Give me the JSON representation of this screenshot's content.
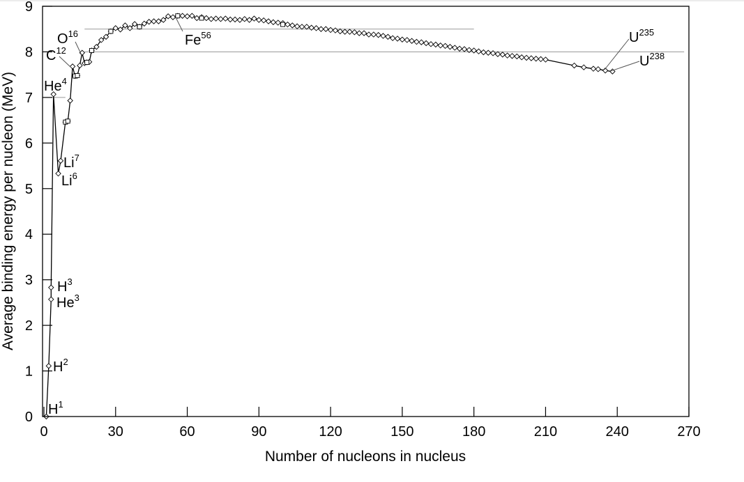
{
  "chart_data": {
    "type": "scatter",
    "title": "",
    "xlabel": "Number of nucleons in nucleus",
    "ylabel": "Average binding energy per nucleon (MeV)",
    "xlim": [
      0,
      270
    ],
    "ylim": [
      0,
      9
    ],
    "x_ticks": [
      0,
      30,
      60,
      90,
      120,
      150,
      180,
      210,
      240,
      270
    ],
    "y_ticks": [
      0,
      1,
      2,
      3,
      4,
      5,
      6,
      7,
      8,
      9
    ],
    "grid": false,
    "legend": "none",
    "reference_lines": [
      {
        "y": 8.5,
        "x_from": 17,
        "x_to": 180,
        "color": "#999999"
      },
      {
        "y": 8.0,
        "x_from": 17,
        "x_to": 268,
        "color": "#999999"
      },
      {
        "y": 7.0,
        "x_from": 3,
        "x_to": 9,
        "color": "#999999"
      }
    ],
    "series": [
      {
        "marker": "diamond",
        "connected": true,
        "x": [
          1,
          2,
          3,
          3,
          4,
          6,
          7,
          9,
          10,
          11,
          12,
          13,
          14,
          15,
          16,
          17,
          18,
          19,
          20,
          22,
          24,
          26,
          28,
          30,
          32,
          34,
          36,
          38,
          40,
          42,
          44,
          46,
          48,
          50,
          52,
          54,
          56,
          58,
          60,
          62,
          64,
          66,
          68,
          70,
          72,
          74,
          76,
          78,
          80,
          82,
          84,
          86,
          88,
          90,
          92,
          94,
          96,
          98,
          100,
          102,
          104,
          106,
          108,
          110,
          112,
          114,
          116,
          118,
          120,
          122,
          124,
          126,
          128,
          130,
          132,
          134,
          136,
          138,
          140,
          142,
          144,
          146,
          148,
          150,
          152,
          154,
          156,
          158,
          160,
          162,
          164,
          166,
          168,
          170,
          172,
          174,
          176,
          178,
          180,
          182,
          184,
          186,
          188,
          190,
          192,
          194,
          196,
          198,
          200,
          202,
          204,
          206,
          208,
          210,
          222,
          226,
          230,
          232,
          235,
          238
        ],
        "y": [
          0.0,
          1.11,
          2.57,
          2.83,
          7.07,
          5.33,
          5.61,
          6.46,
          6.48,
          6.93,
          7.68,
          7.47,
          7.48,
          7.7,
          7.98,
          7.75,
          7.77,
          7.78,
          8.03,
          8.11,
          8.26,
          8.33,
          8.45,
          8.52,
          8.49,
          8.58,
          8.52,
          8.61,
          8.55,
          8.62,
          8.66,
          8.67,
          8.67,
          8.7,
          8.78,
          8.76,
          8.79,
          8.79,
          8.78,
          8.79,
          8.74,
          8.76,
          8.74,
          8.72,
          8.73,
          8.72,
          8.73,
          8.71,
          8.71,
          8.7,
          8.72,
          8.7,
          8.73,
          8.7,
          8.69,
          8.67,
          8.65,
          8.64,
          8.63,
          8.6,
          8.58,
          8.56,
          8.55,
          8.55,
          8.53,
          8.52,
          8.5,
          8.5,
          8.48,
          8.47,
          8.45,
          8.44,
          8.44,
          8.43,
          8.41,
          8.41,
          8.38,
          8.38,
          8.37,
          8.35,
          8.33,
          8.3,
          8.29,
          8.27,
          8.26,
          8.24,
          8.22,
          8.21,
          8.19,
          8.17,
          8.16,
          8.14,
          8.13,
          8.11,
          8.09,
          8.07,
          8.06,
          8.04,
          8.03,
          8.01,
          7.99,
          7.98,
          7.97,
          7.95,
          7.94,
          7.92,
          7.91,
          7.9,
          7.88,
          7.87,
          7.86,
          7.85,
          7.84,
          7.83,
          7.7,
          7.66,
          7.63,
          7.62,
          7.59,
          7.57
        ]
      },
      {
        "marker": "square",
        "connected": false,
        "x": [
          9,
          10,
          13,
          14,
          18,
          20,
          28,
          40,
          56,
          66,
          100
        ],
        "y": [
          6.46,
          6.48,
          7.47,
          7.48,
          7.77,
          8.03,
          8.45,
          8.55,
          8.79,
          8.74,
          8.6
        ]
      }
    ],
    "annotations": [
      {
        "base": "H",
        "sup": "1",
        "x": 1,
        "y": 0.0
      },
      {
        "base": "H",
        "sup": "2",
        "x": 2,
        "y": 1.11
      },
      {
        "base": "He",
        "sup": "3",
        "x": 3,
        "y": 2.57
      },
      {
        "base": "H",
        "sup": "3",
        "x": 3,
        "y": 2.83
      },
      {
        "base": "He",
        "sup": "4",
        "x": 4,
        "y": 7.07
      },
      {
        "base": "Li",
        "sup": "6",
        "x": 6,
        "y": 5.33
      },
      {
        "base": "Li",
        "sup": "7",
        "x": 7,
        "y": 5.61
      },
      {
        "base": "C",
        "sup": "12",
        "x": 12,
        "y": 7.68
      },
      {
        "base": "O",
        "sup": "16",
        "x": 16,
        "y": 7.98
      },
      {
        "base": "Fe",
        "sup": "56",
        "x": 56,
        "y": 8.79
      },
      {
        "base": "U",
        "sup": "235",
        "x": 235,
        "y": 7.59
      },
      {
        "base": "U",
        "sup": "238",
        "x": 238,
        "y": 7.57
      }
    ]
  }
}
